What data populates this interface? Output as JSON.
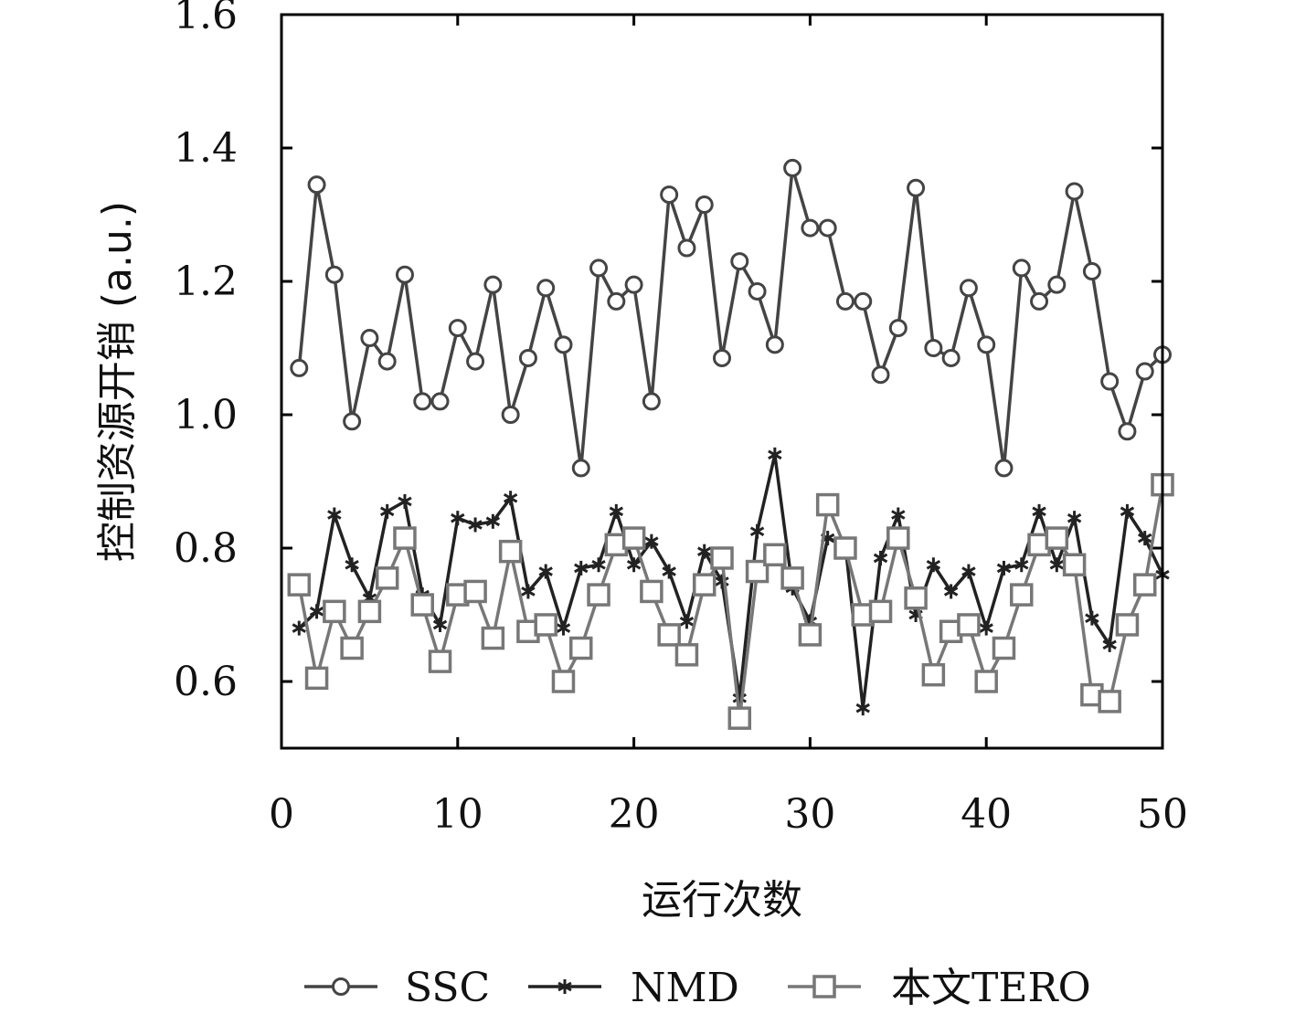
{
  "chart_data": {
    "type": "line",
    "xlabel": "运行次数",
    "ylabel": "控制资源开销 (a.u.)",
    "xlim": [
      0,
      50
    ],
    "ylim": [
      0.5,
      1.6
    ],
    "xticks": [
      0,
      10,
      20,
      30,
      40,
      50
    ],
    "yticks": [
      0.6,
      0.8,
      1.0,
      1.2,
      1.4,
      1.6
    ],
    "xtick_labels": [
      "0",
      "10",
      "20",
      "30",
      "40",
      "50"
    ],
    "ytick_labels": [
      "0.6",
      "0.8",
      "1.0",
      "1.2",
      "1.4",
      "1.6"
    ],
    "grid": false,
    "legend_position": "bottom",
    "x": [
      1,
      2,
      3,
      4,
      5,
      6,
      7,
      8,
      9,
      10,
      11,
      12,
      13,
      14,
      15,
      16,
      17,
      18,
      19,
      20,
      21,
      22,
      23,
      24,
      25,
      26,
      27,
      28,
      29,
      30,
      31,
      32,
      33,
      34,
      35,
      36,
      37,
      38,
      39,
      40,
      41,
      42,
      43,
      44,
      45,
      46,
      47,
      48,
      49,
      50
    ],
    "series": [
      {
        "name": "SSC",
        "marker": "circle",
        "color": "#444444",
        "values": [
          1.07,
          1.345,
          1.21,
          0.99,
          1.115,
          1.08,
          1.21,
          1.02,
          1.02,
          1.13,
          1.08,
          1.195,
          1.0,
          1.085,
          1.19,
          1.105,
          0.92,
          1.22,
          1.17,
          1.195,
          1.02,
          1.33,
          1.25,
          1.315,
          1.085,
          1.23,
          1.185,
          1.105,
          1.37,
          1.28,
          1.28,
          1.17,
          1.17,
          1.06,
          1.13,
          1.34,
          1.1,
          1.085,
          1.19,
          1.105,
          0.92,
          1.22,
          1.17,
          1.195,
          1.335,
          1.215,
          1.05,
          0.975,
          1.065,
          1.09
        ]
      },
      {
        "name": "NMD",
        "marker": "asterisk",
        "color": "#222222",
        "values": [
          0.68,
          0.705,
          0.85,
          0.775,
          0.725,
          0.855,
          0.87,
          0.73,
          0.685,
          0.845,
          0.835,
          0.84,
          0.875,
          0.735,
          0.765,
          0.68,
          0.77,
          0.775,
          0.855,
          0.775,
          0.81,
          0.765,
          0.69,
          0.795,
          0.75,
          0.575,
          0.825,
          0.94,
          0.74,
          0.69,
          0.815,
          0.805,
          0.56,
          0.785,
          0.85,
          0.7,
          0.775,
          0.735,
          0.765,
          0.68,
          0.77,
          0.775,
          0.855,
          0.775,
          0.845,
          0.695,
          0.655,
          0.855,
          0.815,
          0.76
        ]
      },
      {
        "name": "本文TERO",
        "marker": "square",
        "color": "#777777",
        "values": [
          0.745,
          0.605,
          0.705,
          0.65,
          0.705,
          0.755,
          0.815,
          0.715,
          0.63,
          0.73,
          0.735,
          0.665,
          0.795,
          0.675,
          0.685,
          0.6,
          0.65,
          0.73,
          0.805,
          0.815,
          0.735,
          0.67,
          0.64,
          0.745,
          0.785,
          0.545,
          0.765,
          0.79,
          0.755,
          0.67,
          0.865,
          0.8,
          0.7,
          0.705,
          0.815,
          0.725,
          0.61,
          0.675,
          0.685,
          0.6,
          0.65,
          0.73,
          0.805,
          0.815,
          0.775,
          0.58,
          0.57,
          0.685,
          0.745,
          0.895
        ]
      }
    ]
  }
}
